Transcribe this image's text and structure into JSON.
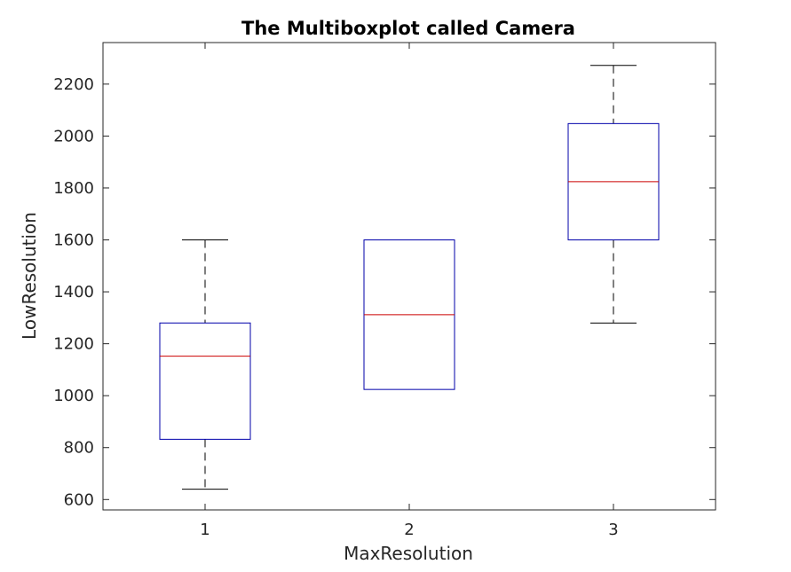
{
  "chart_data": {
    "type": "box",
    "title": "The Multiboxplot called Camera",
    "xlabel": "MaxResolution",
    "ylabel": "LowResolution",
    "categories": [
      "1",
      "2",
      "3"
    ],
    "ylim": [
      560,
      2360
    ],
    "yticks": [
      600,
      800,
      1000,
      1200,
      1400,
      1600,
      1800,
      2000,
      2200
    ],
    "grid": false,
    "boxes": [
      {
        "category": "1",
        "whisker_low": 640,
        "q1": 832,
        "median": 1152,
        "q3": 1280,
        "whisker_high": 1600
      },
      {
        "category": "2",
        "whisker_low": 1024,
        "q1": 1024,
        "median": 1312,
        "q3": 1600,
        "whisker_high": 1600
      },
      {
        "category": "3",
        "whisker_low": 1280,
        "q1": 1600,
        "median": 1824,
        "q3": 2048,
        "whisker_high": 2272
      }
    ],
    "colors": {
      "box": "#0000aa",
      "median": "#cc0000",
      "whisker": "#000000",
      "axes": "#262626"
    }
  }
}
